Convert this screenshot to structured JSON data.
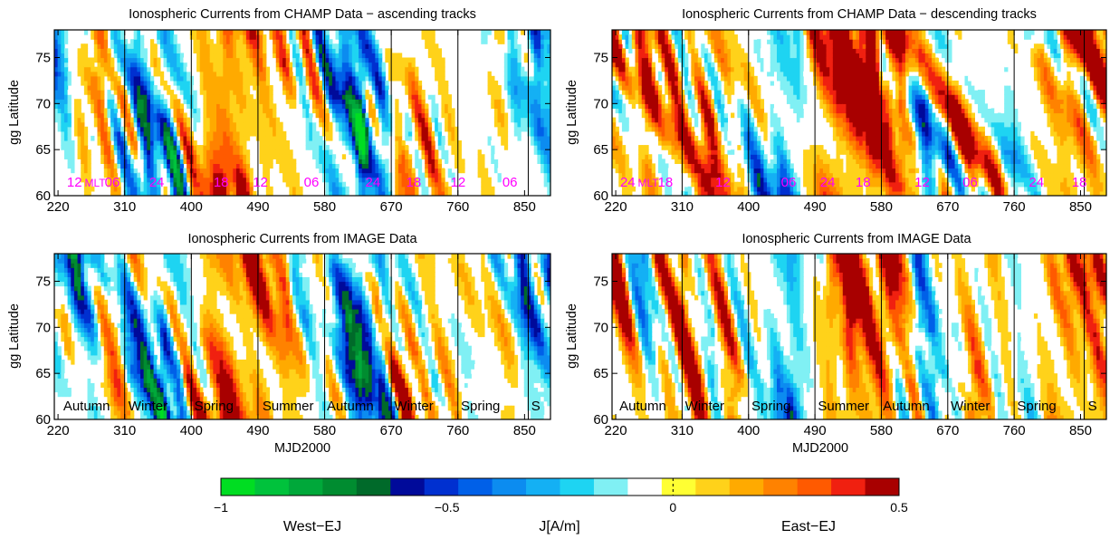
{
  "chart_data": {
    "type": "heatmap",
    "colorbar": {
      "label": "J[A/m]",
      "left_label": "West−EJ",
      "right_label": "East−EJ",
      "ticks": [
        {
          "value": -1,
          "label": "−1"
        },
        {
          "value": -0.5,
          "label": "−0.5"
        },
        {
          "value": 0,
          "label": "0"
        },
        {
          "value": 0.5,
          "label": "0.5"
        }
      ],
      "range": [
        -1,
        0.5
      ],
      "colors": [
        "#00dd22",
        "#00c23c",
        "#00a83a",
        "#008c30",
        "#006a2a",
        "#000a9a",
        "#0030d0",
        "#0060e8",
        "#0c8cf0",
        "#14b0f4",
        "#1ed4f2",
        "#80f0f4",
        "#ffffff",
        "#ffff33",
        "#ffd21a",
        "#ffaa00",
        "#ff8200",
        "#ff5a00",
        "#f02010",
        "#a80000"
      ]
    },
    "panels": [
      {
        "id": "champ-ascending",
        "title": "Ionospheric Currents from CHAMP Data  − ascending tracks",
        "ylabel": "gg Latitude",
        "xlabel": "",
        "xlim": [
          215,
          885
        ],
        "ylim": [
          60,
          78
        ],
        "x_ticks": [
          220,
          310,
          400,
          490,
          580,
          670,
          760,
          850
        ],
        "y_ticks": [
          60,
          65,
          70,
          75
        ],
        "dividers": [
          310,
          400,
          490,
          580,
          670,
          760,
          855
        ],
        "annotations": [
          {
            "x": 232,
            "text": "12 "
          },
          {
            "x": 256,
            "text": "MLT"
          },
          {
            "x": 283,
            "text": "06"
          },
          {
            "x": 343,
            "text": "24"
          },
          {
            "x": 430,
            "text": "18"
          },
          {
            "x": 483,
            "text": "12"
          },
          {
            "x": 552,
            "text": "06"
          },
          {
            "x": 635,
            "text": "24"
          },
          {
            "x": 690,
            "text": "18"
          },
          {
            "x": 750,
            "text": "12"
          },
          {
            "x": 820,
            "text": "06"
          }
        ],
        "annotation_color": "#ff00ff",
        "seed": 11,
        "bias": [
          [
            235,
            -0.25
          ],
          [
            255,
            0.2
          ],
          [
            300,
            -0.05
          ],
          [
            340,
            -0.35
          ],
          [
            380,
            -0.3
          ],
          [
            420,
            0.35
          ],
          [
            445,
            0.5
          ],
          [
            470,
            0.4
          ],
          [
            500,
            0.3
          ],
          [
            540,
            0.05
          ],
          [
            600,
            -0.25
          ],
          [
            625,
            -0.5
          ],
          [
            660,
            -0.15
          ],
          [
            700,
            0.2
          ],
          [
            730,
            0.1
          ],
          [
            780,
            -0.05
          ],
          [
            820,
            0.05
          ],
          [
            845,
            -0.4
          ],
          [
            875,
            -0.3
          ]
        ]
      },
      {
        "id": "champ-descending",
        "title": "Ionospheric Currents from CHAMP Data  − descending tracks",
        "ylabel": "gg Latitude",
        "xlabel": "",
        "xlim": [
          215,
          885
        ],
        "ylim": [
          60,
          78
        ],
        "x_ticks": [
          220,
          310,
          400,
          490,
          580,
          670,
          760,
          850
        ],
        "y_ticks": [
          60,
          65,
          70,
          75
        ],
        "dividers": [
          310,
          400,
          490,
          580,
          670,
          760,
          855
        ],
        "annotations": [
          {
            "x": 226,
            "text": "24"
          },
          {
            "x": 250,
            "text": "MLT"
          },
          {
            "x": 277,
            "text": "18"
          },
          {
            "x": 355,
            "text": "12"
          },
          {
            "x": 444,
            "text": "06"
          },
          {
            "x": 497,
            "text": "24"
          },
          {
            "x": 545,
            "text": "18"
          },
          {
            "x": 625,
            "text": "12"
          },
          {
            "x": 690,
            "text": "06"
          },
          {
            "x": 780,
            "text": "24"
          },
          {
            "x": 838,
            "text": "18"
          }
        ],
        "annotation_color": "#ff00ff",
        "seed": 29,
        "bias": [
          [
            230,
            0.1
          ],
          [
            260,
            0.25
          ],
          [
            300,
            0.15
          ],
          [
            350,
            0.2
          ],
          [
            400,
            -0.05
          ],
          [
            430,
            -0.3
          ],
          [
            460,
            -0.55
          ],
          [
            490,
            0.3
          ],
          [
            520,
            0.5
          ],
          [
            560,
            0.55
          ],
          [
            600,
            0.35
          ],
          [
            640,
            -0.2
          ],
          [
            680,
            0.15
          ],
          [
            720,
            0.1
          ],
          [
            760,
            -0.3
          ],
          [
            800,
            0.2
          ],
          [
            830,
            0.35
          ],
          [
            860,
            0.3
          ]
        ]
      },
      {
        "id": "image-ascending",
        "title": "Ionospheric Currents from IMAGE Data",
        "ylabel": "gg Latitude",
        "xlabel": "MJD2000",
        "xlim": [
          215,
          885
        ],
        "ylim": [
          60,
          78
        ],
        "x_ticks": [
          220,
          310,
          400,
          490,
          580,
          670,
          760,
          850
        ],
        "y_ticks": [
          60,
          65,
          70,
          75
        ],
        "dividers": [
          310,
          400,
          490,
          580,
          670,
          760,
          855
        ],
        "annotations": [
          {
            "x": 227,
            "text": "Autumn"
          },
          {
            "x": 315,
            "text": "Winter"
          },
          {
            "x": 404,
            "text": "Spring"
          },
          {
            "x": 496,
            "text": "Summer"
          },
          {
            "x": 583,
            "text": "Autumn"
          },
          {
            "x": 674,
            "text": "Winter"
          },
          {
            "x": 764,
            "text": "Spring"
          },
          {
            "x": 859,
            "text": "S"
          }
        ],
        "annotation_color": "#000000",
        "seed": 47,
        "bias": [
          [
            230,
            -0.3
          ],
          [
            260,
            -0.15
          ],
          [
            300,
            0.1
          ],
          [
            340,
            -0.35
          ],
          [
            380,
            -0.3
          ],
          [
            420,
            0.3
          ],
          [
            450,
            0.55
          ],
          [
            480,
            0.45
          ],
          [
            510,
            0.35
          ],
          [
            550,
            0.1
          ],
          [
            600,
            -0.25
          ],
          [
            630,
            -0.45
          ],
          [
            660,
            -0.2
          ],
          [
            700,
            0.15
          ],
          [
            740,
            0.05
          ],
          [
            790,
            -0.05
          ],
          [
            830,
            0.1
          ],
          [
            850,
            -0.4
          ],
          [
            875,
            -0.35
          ]
        ]
      },
      {
        "id": "image-descending",
        "title": "Ionospheric Currents from IMAGE Data",
        "ylabel": "gg Latitude",
        "xlabel": "MJD2000",
        "xlim": [
          215,
          885
        ],
        "ylim": [
          60,
          78
        ],
        "x_ticks": [
          220,
          310,
          400,
          490,
          580,
          670,
          760,
          850
        ],
        "y_ticks": [
          60,
          65,
          70,
          75
        ],
        "dividers": [
          310,
          400,
          490,
          580,
          670,
          760,
          855
        ],
        "annotations": [
          {
            "x": 225,
            "text": "Autumn"
          },
          {
            "x": 314,
            "text": "Winter"
          },
          {
            "x": 404,
            "text": "Spring"
          },
          {
            "x": 494,
            "text": "Summer"
          },
          {
            "x": 582,
            "text": "Autumn"
          },
          {
            "x": 674,
            "text": "Winter"
          },
          {
            "x": 764,
            "text": "Spring"
          },
          {
            "x": 860,
            "text": "S"
          }
        ],
        "annotation_color": "#000000",
        "seed": 83,
        "bias": [
          [
            230,
            0.2
          ],
          [
            260,
            -0.1
          ],
          [
            300,
            0.2
          ],
          [
            350,
            0.15
          ],
          [
            400,
            -0.05
          ],
          [
            440,
            -0.35
          ],
          [
            470,
            -0.55
          ],
          [
            500,
            0.25
          ],
          [
            530,
            0.5
          ],
          [
            560,
            0.55
          ],
          [
            590,
            0.35
          ],
          [
            620,
            -0.15
          ],
          [
            660,
            -0.1
          ],
          [
            700,
            0.1
          ],
          [
            740,
            0.1
          ],
          [
            770,
            -0.25
          ],
          [
            810,
            0.2
          ],
          [
            840,
            0.35
          ],
          [
            870,
            0.3
          ]
        ]
      }
    ]
  }
}
